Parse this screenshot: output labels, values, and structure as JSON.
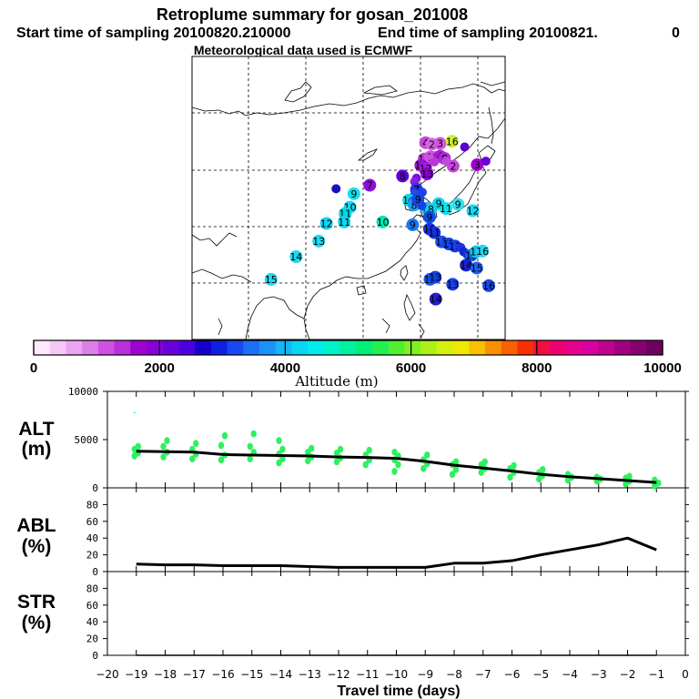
{
  "header": {
    "title": "Retroplume summary for gosan_201008",
    "start_label": "Start time of sampling 20100820.210000",
    "end_label": "End time of sampling 20100821.",
    "end_suffix": "0",
    "met_label": "Meteorological data used is ECMWF"
  },
  "colorbar": {
    "tick_labels": [
      "0",
      "2000",
      "4000",
      "6000",
      "8000",
      "10000"
    ],
    "title": "Altitude (m)",
    "range": [
      0,
      10000
    ],
    "colors": [
      "#fde8fd",
      "#f6c8f8",
      "#eaa4f2",
      "#dc7ee8",
      "#cd52e0",
      "#b830d8",
      "#a000d0",
      "#8a00d8",
      "#6a00dc",
      "#4a00e0",
      "#1400c8",
      "#1020e0",
      "#1848f0",
      "#1c6ef5",
      "#1c92f8",
      "#14b6f8",
      "#08d6f4",
      "#00ecec",
      "#00f0c8",
      "#00f0a0",
      "#00f078",
      "#20f050",
      "#50f030",
      "#80f020",
      "#acf018",
      "#d4f010",
      "#f0e800",
      "#f8c000",
      "#f89000",
      "#f86000",
      "#f83000",
      "#f01040",
      "#f00070",
      "#e80090",
      "#d800a0",
      "#c00090",
      "#a00080",
      "#880070",
      "#700060"
    ]
  },
  "map": {
    "plume_points": [
      {
        "lon": 128.5,
        "lat": 37.8,
        "label": "4",
        "color": "#cc44dd"
      },
      {
        "lon": 129.8,
        "lat": 37.6,
        "label": "2",
        "color": "#d666e6"
      },
      {
        "lon": 131.5,
        "lat": 37.7,
        "label": "3",
        "color": "#d455e2"
      },
      {
        "lon": 134,
        "lat": 38,
        "label": "16",
        "color": "#c8f030"
      },
      {
        "lon": 136.6,
        "lat": 37.2,
        "label": "",
        "color": "#5a00d0"
      },
      {
        "lon": 128.2,
        "lat": 35.5,
        "label": "15",
        "color": "#c03cd8"
      },
      {
        "lon": 129.5,
        "lat": 35.8,
        "label": "1",
        "color": "#cc50e0"
      },
      {
        "lon": 130.5,
        "lat": 35.7,
        "label": "1",
        "color": "#cc50e0"
      },
      {
        "lon": 131.5,
        "lat": 35.9,
        "label": "4",
        "color": "#a820d0"
      },
      {
        "lon": 132.4,
        "lat": 35.6,
        "label": "8",
        "color": "#b028d8"
      },
      {
        "lon": 130.3,
        "lat": 35.1,
        "label": "",
        "color": "#b838dc"
      },
      {
        "lon": 132.8,
        "lat": 35.2,
        "label": "",
        "color": "#c04ae0"
      },
      {
        "lon": 134.2,
        "lat": 34.5,
        "label": "2",
        "color": "#c646dc"
      },
      {
        "lon": 127.5,
        "lat": 34.6,
        "label": "14",
        "color": "#9a10d4"
      },
      {
        "lon": 128.5,
        "lat": 34.2,
        "label": "13",
        "color": "#a01cd6"
      },
      {
        "lon": 139.2,
        "lat": 34.7,
        "label": "3",
        "color": "#a000cc"
      },
      {
        "lon": 141,
        "lat": 35.2,
        "label": "",
        "color": "#6a00d8"
      },
      {
        "lon": 128.8,
        "lat": 33.4,
        "label": "13",
        "color": "#8800d0"
      },
      {
        "lon": 123.7,
        "lat": 33.1,
        "label": "8",
        "color": "#6000d8"
      },
      {
        "lon": 126.6,
        "lat": 32.8,
        "label": "",
        "color": "#7a10dc"
      },
      {
        "lon": 126.2,
        "lat": 32.3,
        "label": "",
        "color": "#8a20e0"
      },
      {
        "lon": 116.9,
        "lat": 31.8,
        "label": "7",
        "color": "#8a10d8"
      },
      {
        "lon": 126.6,
        "lat": 31.2,
        "label": "7",
        "color": "#2a30e0"
      },
      {
        "lon": 126.3,
        "lat": 30.6,
        "label": "",
        "color": "#1850f0"
      },
      {
        "lon": 127.8,
        "lat": 30.8,
        "label": "",
        "color": "#2040f0"
      },
      {
        "lon": 109.9,
        "lat": 31.3,
        "label": "",
        "color": "#1a10c0"
      },
      {
        "lon": 113.6,
        "lat": 30.6,
        "label": "9",
        "color": "#14e0ec"
      },
      {
        "lon": 125,
        "lat": 29.7,
        "label": "16",
        "color": "#10d8e0"
      },
      {
        "lon": 125.7,
        "lat": 29.5,
        "label": "",
        "color": "#1870f0"
      },
      {
        "lon": 126.1,
        "lat": 29,
        "label": "8",
        "color": "#20a0f0"
      },
      {
        "lon": 128.6,
        "lat": 28.5,
        "label": "8",
        "color": "#1cc0f0"
      },
      {
        "lon": 129.6,
        "lat": 28.4,
        "label": "8",
        "color": "#10ccf0"
      },
      {
        "lon": 131.2,
        "lat": 29.2,
        "label": "9",
        "color": "#08d8f0"
      },
      {
        "lon": 132.7,
        "lat": 28.5,
        "label": "11",
        "color": "#10e0ec"
      },
      {
        "lon": 135.2,
        "lat": 29.1,
        "label": "9",
        "color": "#30e0f0"
      },
      {
        "lon": 138.3,
        "lat": 28.2,
        "label": "12",
        "color": "#18d8f0"
      },
      {
        "lon": 126.9,
        "lat": 29.8,
        "label": "9",
        "color": "#1448e8"
      },
      {
        "lon": 127.7,
        "lat": 28.9,
        "label": "",
        "color": "#1840e8"
      },
      {
        "lon": 112.8,
        "lat": 28.7,
        "label": "10",
        "color": "#18d8f0"
      },
      {
        "lon": 111.8,
        "lat": 27.8,
        "label": "11",
        "color": "#00d8e8"
      },
      {
        "lon": 111.6,
        "lat": 26.6,
        "label": "11",
        "color": "#10d8f0"
      },
      {
        "lon": 107.9,
        "lat": 26.4,
        "label": "12",
        "color": "#10d4f0"
      },
      {
        "lon": 119.6,
        "lat": 26.6,
        "label": "10",
        "color": "#00e8b0"
      },
      {
        "lon": 129.3,
        "lat": 27.3,
        "label": "9",
        "color": "#1050e8"
      },
      {
        "lon": 125.8,
        "lat": 26.2,
        "label": "9",
        "color": "#1878f0"
      },
      {
        "lon": 106.3,
        "lat": 23.9,
        "label": "13",
        "color": "#20d8f0"
      },
      {
        "lon": 101.6,
        "lat": 21.7,
        "label": "14",
        "color": "#20d8f0"
      },
      {
        "lon": 129.3,
        "lat": 25.6,
        "label": "10",
        "color": "#1838e8"
      },
      {
        "lon": 130.3,
        "lat": 25.1,
        "label": "11",
        "color": "#1430e0"
      },
      {
        "lon": 131.8,
        "lat": 23.8,
        "label": "11",
        "color": "#1850f0"
      },
      {
        "lon": 133.3,
        "lat": 23.5,
        "label": "13",
        "color": "#1040e0"
      },
      {
        "lon": 134.6,
        "lat": 23.2,
        "label": "13",
        "color": "#1840e8"
      },
      {
        "lon": 135.8,
        "lat": 23,
        "label": "",
        "color": "#2030e0"
      },
      {
        "lon": 136.4,
        "lat": 22.4,
        "label": "",
        "color": "#1028d0"
      },
      {
        "lon": 137.1,
        "lat": 22,
        "label": "",
        "color": "#1430e0"
      },
      {
        "lon": 138,
        "lat": 21.9,
        "label": "15",
        "color": "#1060e8"
      },
      {
        "lon": 139,
        "lat": 22.4,
        "label": "15",
        "color": "#10c0f0"
      },
      {
        "lon": 140.3,
        "lat": 22.5,
        "label": "16",
        "color": "#20d8f0"
      },
      {
        "lon": 136.9,
        "lat": 20.5,
        "label": "14",
        "color": "#1820d8"
      },
      {
        "lon": 139.1,
        "lat": 20.1,
        "label": "15",
        "color": "#1c60f0"
      },
      {
        "lon": 141.6,
        "lat": 17.6,
        "label": "16",
        "color": "#1848e8"
      },
      {
        "lon": 129.4,
        "lat": 18.5,
        "label": "12",
        "color": "#1458f0"
      },
      {
        "lon": 130.5,
        "lat": 18.8,
        "label": "13",
        "color": "#1040e0"
      },
      {
        "lon": 134.1,
        "lat": 17.8,
        "label": "13",
        "color": "#1840e8"
      },
      {
        "lon": 130.6,
        "lat": 15.7,
        "label": "14",
        "color": "#2020d0"
      },
      {
        "lon": 96.4,
        "lat": 18.5,
        "label": "15",
        "color": "#20d8f0"
      }
    ]
  },
  "panels": [
    {
      "label_line1": "ALT",
      "label_line2": "(m)",
      "ylim": [
        0,
        10000
      ],
      "yticks": [
        "10000",
        "5000",
        "0"
      ]
    },
    {
      "label_line1": "ABL",
      "label_line2": "(%)",
      "ylim": [
        0,
        100
      ],
      "yticks": [
        "80",
        "60",
        "40",
        "20",
        "0"
      ]
    },
    {
      "label_line1": "STR",
      "label_line2": "(%)",
      "ylim": [
        0,
        100
      ],
      "yticks": [
        "80",
        "60",
        "40",
        "20",
        "0"
      ]
    }
  ],
  "x_axis": {
    "xlabel": "Travel time (days)",
    "xlim": [
      -20,
      0
    ],
    "tick_labels": [
      "−20",
      "−19",
      "−18",
      "−17",
      "−16",
      "−15",
      "−14",
      "−13",
      "−12",
      "−11",
      "−10",
      "−9",
      "−8",
      "−7",
      "−6",
      "−5",
      "−4",
      "−3",
      "−2",
      "−1",
      "0"
    ]
  },
  "chart_data": {
    "type": "line",
    "title": "Retroplume summary for gosan_201008",
    "xlabel": "Travel time (days)",
    "x": [
      -19,
      -18,
      -17,
      -16,
      -15,
      -14,
      -13,
      -12,
      -11,
      -10,
      -9,
      -8,
      -7,
      -6,
      -5,
      -4,
      -3,
      -2,
      -1
    ],
    "series": [
      {
        "name": "ALT (m)",
        "ylim": [
          0,
          10000
        ],
        "values": [
          3800,
          3750,
          3700,
          3450,
          3400,
          3350,
          3300,
          3200,
          3150,
          3050,
          2750,
          2350,
          2050,
          1750,
          1400,
          1150,
          950,
          750,
          550
        ],
        "scatter": [
          {
            "x": -19,
            "values": [
              3300,
              3600,
              4000,
              4300,
              7800
            ]
          },
          {
            "x": -18,
            "values": [
              3200,
              3700,
              4300,
              4900
            ]
          },
          {
            "x": -17,
            "values": [
              3000,
              3500,
              4000,
              4600
            ]
          },
          {
            "x": -16,
            "values": [
              2900,
              3400,
              4400,
              5400
            ]
          },
          {
            "x": -15,
            "values": [
              3000,
              3700,
              4300,
              5600
            ]
          },
          {
            "x": -14,
            "values": [
              2600,
              3000,
              3500,
              4000,
              4900
            ]
          },
          {
            "x": -13,
            "values": [
              2800,
              3200,
              3700,
              4100
            ]
          },
          {
            "x": -12,
            "values": [
              2700,
              3100,
              3600,
              4000
            ]
          },
          {
            "x": -11,
            "values": [
              2400,
              2900,
              3400,
              3900
            ]
          },
          {
            "x": -10,
            "values": [
              1700,
              2400,
              2900,
              3300,
              3700
            ]
          },
          {
            "x": -9,
            "values": [
              2000,
              2500,
              2900,
              3400
            ]
          },
          {
            "x": -8,
            "values": [
              1400,
              1900,
              2400,
              2700
            ]
          },
          {
            "x": -7,
            "values": [
              1600,
              2000,
              2400,
              2700
            ]
          },
          {
            "x": -6,
            "values": [
              1100,
              1600,
              2000,
              2300
            ]
          },
          {
            "x": -5,
            "values": [
              900,
              1300,
              1600,
              1900
            ]
          },
          {
            "x": -4,
            "values": [
              800,
              1100,
              1400
            ]
          },
          {
            "x": -3,
            "values": [
              700,
              900,
              1100
            ]
          },
          {
            "x": -2,
            "values": [
              400,
              700,
              1000,
              1200
            ]
          },
          {
            "x": -1,
            "values": [
              200,
              500,
              800
            ]
          }
        ]
      },
      {
        "name": "ABL (%)",
        "ylim": [
          0,
          100
        ],
        "values": [
          9,
          8,
          8,
          7,
          7,
          7,
          6,
          5,
          5,
          5,
          5,
          10,
          10,
          13,
          20,
          26,
          32,
          40,
          26
        ]
      },
      {
        "name": "STR (%)",
        "ylim": [
          0,
          100
        ],
        "values": [
          0,
          0,
          0,
          0,
          0,
          0,
          0,
          0,
          0,
          0,
          0,
          0,
          0,
          0,
          0,
          0,
          0,
          0,
          0
        ]
      }
    ]
  }
}
